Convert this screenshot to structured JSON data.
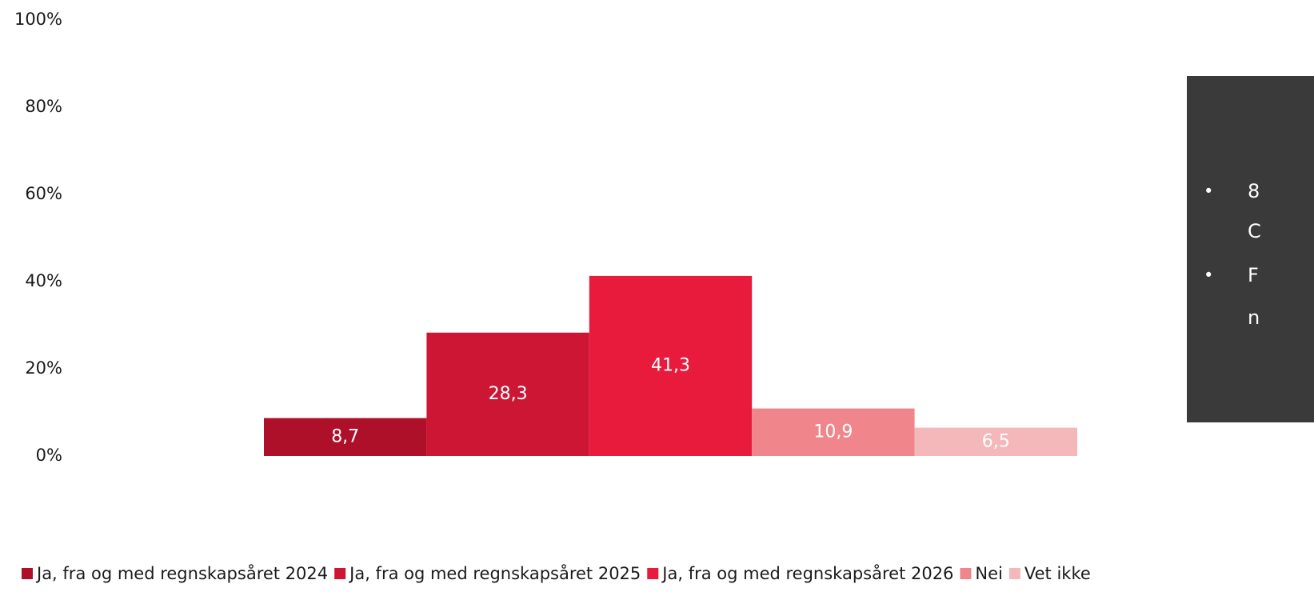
{
  "chart_data": {
    "type": "bar",
    "ylim": [
      0,
      100
    ],
    "yticks": [
      {
        "value": 0,
        "label": "0%"
      },
      {
        "value": 20,
        "label": "20%"
      },
      {
        "value": 40,
        "label": "40%"
      },
      {
        "value": 60,
        "label": "60%"
      },
      {
        "value": 80,
        "label": "80%"
      },
      {
        "value": 100,
        "label": "100%"
      }
    ],
    "series": [
      {
        "name": "Ja, fra og med regnskapsåret 2024",
        "color": "#ae1029",
        "values": [
          8.7
        ],
        "value_labels": [
          "8,7"
        ]
      },
      {
        "name": "Ja, fra og med regnskapsåret 2025",
        "color": "#cc1634",
        "values": [
          28.3
        ],
        "value_labels": [
          "28,3"
        ]
      },
      {
        "name": "Ja, fra og med regnskapsåret 2026",
        "color": "#e81b3c",
        "values": [
          41.3
        ],
        "value_labels": [
          "41,3"
        ]
      },
      {
        "name": "Nei",
        "color": "#f0868b",
        "values": [
          10.9
        ],
        "value_labels": [
          "10,9"
        ]
      },
      {
        "name": "Vet ikke",
        "color": "#f4b8ba",
        "values": [
          6.5
        ],
        "value_labels": [
          "6,5"
        ]
      }
    ],
    "legend": "bottom",
    "panel": {
      "lines": [
        "8",
        "C",
        "F",
        "n"
      ]
    }
  }
}
